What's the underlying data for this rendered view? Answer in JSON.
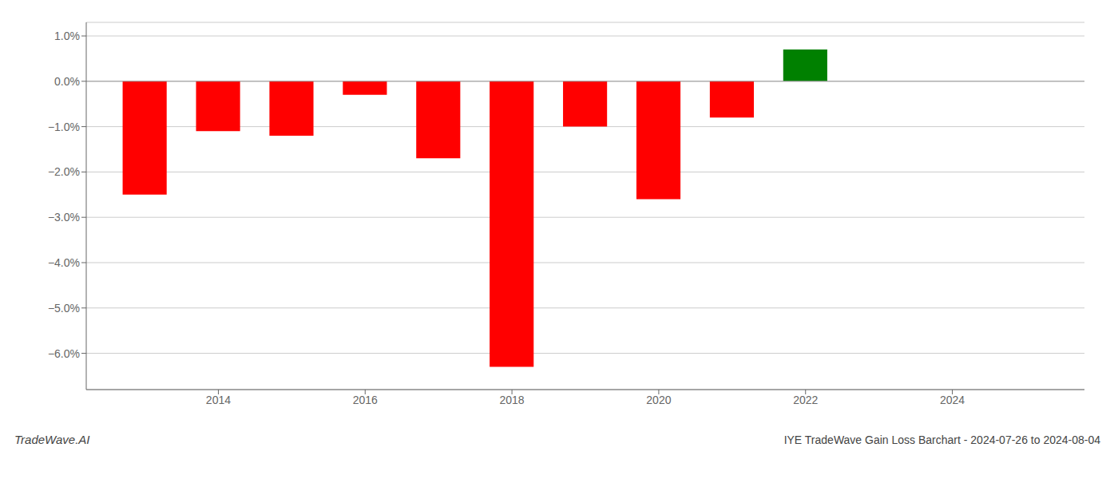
{
  "chart_data": {
    "type": "bar",
    "title": "IYE TradeWave Gain Loss Barchart - 2024-07-26 to 2024-08-04",
    "annotations": [
      "TradeWave.AI"
    ],
    "x": [
      2013,
      2014,
      2015,
      2016,
      2017,
      2018,
      2019,
      2020,
      2021,
      2022,
      2023
    ],
    "values": [
      -0.025,
      -0.011,
      -0.012,
      -0.003,
      -0.017,
      -0.063,
      -0.01,
      -0.026,
      -0.008,
      0.007,
      0.0
    ],
    "colors": [
      "#ff0000",
      "#ff0000",
      "#ff0000",
      "#ff0000",
      "#ff0000",
      "#ff0000",
      "#ff0000",
      "#ff0000",
      "#ff0000",
      "#008000",
      "#ff0000"
    ],
    "xlim": [
      2012.2,
      2025.8
    ],
    "xticks": [
      2014,
      2016,
      2018,
      2020,
      2022,
      2024
    ],
    "ylim": [
      -0.068,
      0.013
    ],
    "yticks": [
      {
        "value": -0.06,
        "label": "−6.0%"
      },
      {
        "value": -0.05,
        "label": "−5.0%"
      },
      {
        "value": -0.04,
        "label": "−4.0%"
      },
      {
        "value": -0.03,
        "label": "−3.0%"
      },
      {
        "value": -0.02,
        "label": "−2.0%"
      },
      {
        "value": -0.01,
        "label": "−1.0%"
      },
      {
        "value": 0,
        "label": "0.0%"
      },
      {
        "value": 0.01,
        "label": "1.0%"
      }
    ],
    "grid": true
  }
}
